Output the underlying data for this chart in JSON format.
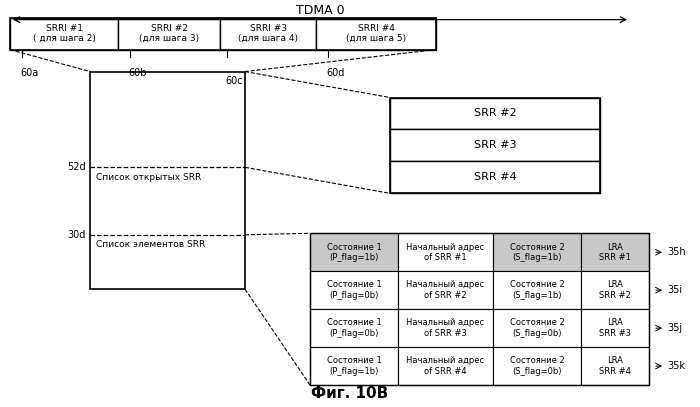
{
  "title": "TDMA 0",
  "fig_caption": "Фиг. 10В",
  "bg_color": "#ffffff",
  "srri_boxes": [
    {
      "label": "SRRI #1\n( для шага 2)",
      "tag": "60a"
    },
    {
      "label": "SRRI #2\n(для шага 3)",
      "tag": "60b"
    },
    {
      "label": "SRRI #3\n(для шага 4)",
      "tag": "60c"
    },
    {
      "label": "SRRI #4\n(для шага 5)",
      "tag": "60d"
    }
  ],
  "left_box_label_top": "52d",
  "left_box_label_top_text": "Список открытых SRR",
  "left_box_label_bottom": "30d",
  "left_box_label_bottom_text": "Список элементов SRR",
  "srr_boxes": [
    "SRR #2",
    "SRR #3",
    "SRR #4"
  ],
  "table_rows": [
    {
      "col1": "Состояние 1\n(P_flag=1b)",
      "col2": "Начальный адрес\nof SRR #1",
      "col3": "Состояние 2\n(S_flag=1b)",
      "col4": "LRA\nSRR #1",
      "shaded": true,
      "tag": "35h"
    },
    {
      "col1": "Состояние 1\n(P_flag=0b)",
      "col2": "Начальный адрес\nof SRR #2",
      "col3": "Состояние 2\n(S_flag=1b)",
      "col4": "LRA\nSRR #2",
      "shaded": false,
      "tag": "35i"
    },
    {
      "col1": "Состояние 1\n(P_flag=0b)",
      "col2": "Начальный адрес\nof SRR #3",
      "col3": "Состояние 2\n(S_flag=0b)",
      "col4": "LRA\nSRR #3",
      "shaded": false,
      "tag": "35j"
    },
    {
      "col1": "Состояние 1\n(P_flag=1b)",
      "col2": "Начальный адрес\nof SRR #4",
      "col3": "Состояние 2\n(S_flag=0b)",
      "col4": "LRA\nSRR #4",
      "shaded": false,
      "tag": "35k"
    }
  ]
}
